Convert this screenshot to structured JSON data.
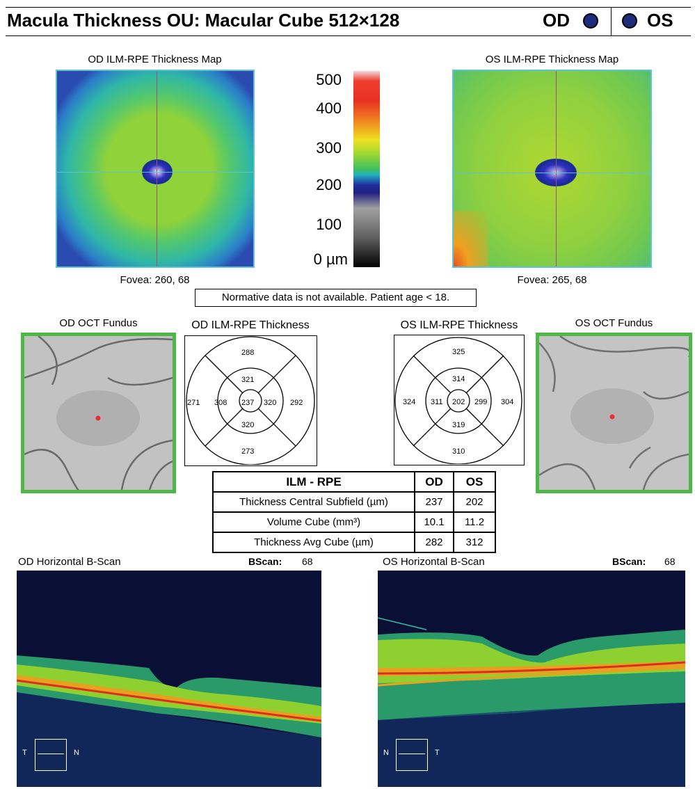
{
  "header": {
    "title": "Macula Thickness OU: Macular Cube 512×128",
    "od_label": "OD",
    "os_label": "OS"
  },
  "thickness_maps": {
    "od": {
      "title": "OD ILM-RPE Thickness Map",
      "fovea": "Fovea: 260, 68"
    },
    "os": {
      "title": "OS ILM-RPE Thickness Map",
      "fovea": "Fovea: 265, 68"
    }
  },
  "color_scale": {
    "labels": [
      "500",
      "400",
      "300",
      "200",
      "100",
      "0 µm"
    ]
  },
  "note": "Normative data is not available. Patient age < 18.",
  "fundus": {
    "od_title": "OD OCT Fundus",
    "os_title": "OS OCT Fundus"
  },
  "grids": {
    "od": {
      "title": "OD ILM-RPE Thickness",
      "center": "237",
      "inner_top": "321",
      "inner_bottom": "320",
      "inner_left": "308",
      "inner_right": "320",
      "outer_top": "288",
      "outer_bottom": "273",
      "outer_left": "271",
      "outer_right": "292"
    },
    "os": {
      "title": "OS ILM-RPE Thickness",
      "center": "202",
      "inner_top": "314",
      "inner_bottom": "319",
      "inner_left": "311",
      "inner_right": "299",
      "outer_top": "325",
      "outer_bottom": "310",
      "outer_left": "324",
      "outer_right": "304"
    }
  },
  "table": {
    "headers": [
      "ILM - RPE",
      "OD",
      "OS"
    ],
    "rows": [
      {
        "label": "Thickness Central Subfield (µm)",
        "od": "237",
        "os": "202"
      },
      {
        "label": "Volume Cube (mm³)",
        "od": "10.1",
        "os": "11.2"
      },
      {
        "label": "Thickness Avg Cube (µm)",
        "od": "282",
        "os": "312"
      }
    ]
  },
  "bscans": {
    "od": {
      "title": "OD Horizontal B-Scan",
      "bscan_label": "BScan:",
      "bscan_value": "68",
      "left_dir": "T",
      "right_dir": "N"
    },
    "os": {
      "title": "OS Horizontal B-Scan",
      "bscan_label": "BScan:",
      "bscan_value": "68",
      "left_dir": "N",
      "right_dir": "T"
    }
  }
}
